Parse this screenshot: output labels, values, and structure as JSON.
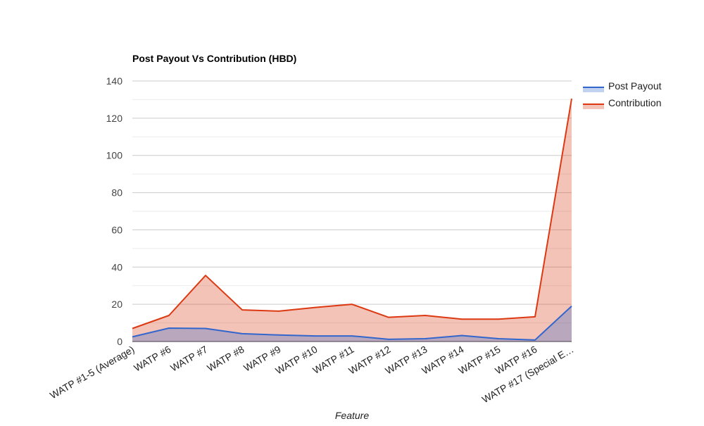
{
  "chart_data": {
    "type": "area",
    "title": "Post Payout Vs Contribution (HBD)",
    "xlabel": "Feature",
    "ylabel": "",
    "ylim": [
      0,
      140
    ],
    "yticks": [
      0,
      20,
      40,
      60,
      80,
      100,
      120,
      140
    ],
    "grid": true,
    "legend_position": "right",
    "categories": [
      "WATP #1-5 (Average)",
      "WATP #6",
      "WATP #7",
      "WATP #8",
      "WATP #9",
      "WATP #10",
      "WATP #11",
      "WATP #12",
      "WATP #13",
      "WATP #14",
      "WATP #15",
      "WATP #16",
      "WATP #17 (Special E…"
    ],
    "series": [
      {
        "name": "Contribution",
        "color": "#dc3912",
        "values": [
          7,
          14,
          35.5,
          17,
          16.3,
          18.3,
          20,
          13,
          14,
          12,
          12,
          13.3,
          130.5
        ]
      },
      {
        "name": "Post Payout",
        "color": "#3366cc",
        "values": [
          2.5,
          7.2,
          7,
          4.2,
          3.5,
          3,
          3,
          1.2,
          1.5,
          3.2,
          1.5,
          0.8,
          19
        ]
      }
    ]
  }
}
